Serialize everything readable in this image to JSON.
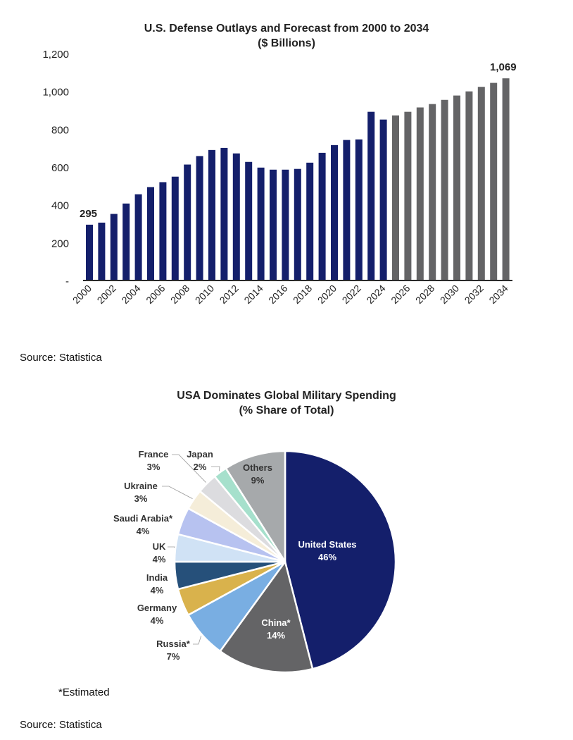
{
  "chart_data": [
    {
      "type": "bar",
      "title": "U.S. Defense Outlays and Forecast from 2000 to 2034",
      "subtitle": "($ Billions)",
      "xlabel": "",
      "ylabel": "",
      "ylim": [
        0,
        1200
      ],
      "yticks": [
        0,
        200,
        400,
        600,
        800,
        1000,
        1200
      ],
      "ytick_labels": [
        "-",
        "200",
        "400",
        "600",
        "800",
        "1,000",
        "1,200"
      ],
      "grid": false,
      "categories": [
        "2000",
        "2001",
        "2002",
        "2003",
        "2004",
        "2005",
        "2006",
        "2007",
        "2008",
        "2009",
        "2010",
        "2011",
        "2012",
        "2013",
        "2014",
        "2015",
        "2016",
        "2017",
        "2018",
        "2019",
        "2020",
        "2021",
        "2022",
        "2023",
        "2024",
        "2025",
        "2026",
        "2027",
        "2028",
        "2029",
        "2030",
        "2031",
        "2032",
        "2033",
        "2034"
      ],
      "xtick_labels": [
        "2000",
        "2002",
        "2004",
        "2006",
        "2008",
        "2010",
        "2012",
        "2014",
        "2016",
        "2018",
        "2020",
        "2022",
        "2024",
        "2026",
        "2028",
        "2030",
        "2032",
        "2034"
      ],
      "series": [
        {
          "name": "Actual",
          "color": "#141f6b",
          "categories": [
            "2000",
            "2001",
            "2002",
            "2003",
            "2004",
            "2005",
            "2006",
            "2007",
            "2008",
            "2009",
            "2010",
            "2011",
            "2012",
            "2013",
            "2014",
            "2015",
            "2016",
            "2017",
            "2018",
            "2019",
            "2020",
            "2021",
            "2022",
            "2023",
            "2024"
          ],
          "values": [
            295,
            306,
            352,
            407,
            456,
            494,
            520,
            549,
            613,
            658,
            690,
            701,
            672,
            627,
            597,
            586,
            586,
            590,
            623,
            675,
            716,
            743,
            746,
            892,
            851
          ]
        },
        {
          "name": "Forecast",
          "color": "#646466",
          "categories": [
            "2025",
            "2026",
            "2027",
            "2028",
            "2029",
            "2030",
            "2031",
            "2032",
            "2033",
            "2034"
          ],
          "values": [
            873,
            892,
            915,
            933,
            955,
            978,
            1000,
            1024,
            1045,
            1069
          ]
        }
      ],
      "annotations": [
        {
          "category": "2000",
          "text": "295"
        },
        {
          "category": "2034",
          "text": "1,069"
        }
      ],
      "source": "Source: Statistica"
    },
    {
      "type": "pie",
      "title": "USA Dominates Global Military Spending",
      "subtitle": "(% Share of Total)",
      "start": "12 o'clock",
      "direction": "clockwise",
      "slices": [
        {
          "label": "United States",
          "value": 46,
          "display": "46%",
          "color": "#141f6b",
          "label_inside": true,
          "label_color": "#ffffff"
        },
        {
          "label": "China*",
          "value": 14,
          "display": "14%",
          "color": "#646466",
          "label_inside": true,
          "label_color": "#ffffff"
        },
        {
          "label": "Russia*",
          "value": 7,
          "display": "7%",
          "color": "#79aee2",
          "label_inside": false,
          "label_color": "#333333"
        },
        {
          "label": "Germany",
          "value": 4,
          "display": "4%",
          "color": "#d9b24c",
          "label_inside": false,
          "label_color": "#333333"
        },
        {
          "label": "India",
          "value": 4,
          "display": "4%",
          "color": "#26507a",
          "label_inside": false,
          "label_color": "#333333"
        },
        {
          "label": "UK",
          "value": 4,
          "display": "4%",
          "color": "#d0e2f5",
          "label_inside": false,
          "label_color": "#333333"
        },
        {
          "label": "Saudi Arabia*",
          "value": 4,
          "display": "4%",
          "color": "#b7c2f0",
          "label_inside": false,
          "label_color": "#333333"
        },
        {
          "label": "Ukraine",
          "value": 3,
          "display": "3%",
          "color": "#f5edd9",
          "label_inside": false,
          "label_color": "#333333"
        },
        {
          "label": "France",
          "value": 3,
          "display": "3%",
          "color": "#dcdcdf",
          "label_inside": false,
          "label_color": "#333333"
        },
        {
          "label": "Japan",
          "value": 2,
          "display": "2%",
          "color": "#a6e0cc",
          "label_inside": false,
          "label_color": "#333333"
        },
        {
          "label": "Others",
          "value": 9,
          "display": "9%",
          "color": "#a6a9ab",
          "label_inside": true,
          "label_color": "#333333"
        }
      ],
      "footnote": "*Estimated",
      "source": "Source: Statistica"
    }
  ]
}
